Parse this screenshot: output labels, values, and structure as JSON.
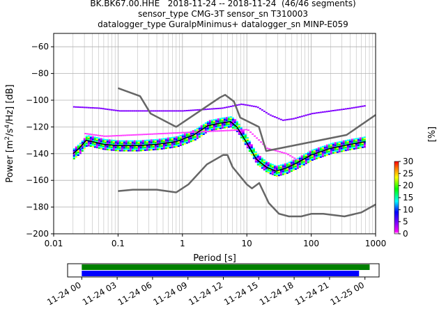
{
  "header": {
    "line1": "BK.BK67.00.HHE   2018-11-24 -- 2018-11-24  (46/46 segments)",
    "line2": "sensor_type CMG-3T sensor_sn T310003",
    "line3": "datalogger_type GuralpMinimus+ datalogger_sn MINP-E059"
  },
  "chart_data": [
    {
      "type": "heatmap",
      "xlabel": "Period [s]",
      "ylabel_prefix": "Power [m",
      "ylabel_sup1": "2",
      "ylabel_mid": "/s",
      "ylabel_sup2": "4",
      "ylabel_suffix": "/Hz] [dB]",
      "x_scale": "log",
      "xlim": [
        0.01,
        1000
      ],
      "ylim": [
        -200,
        -50
      ],
      "x_ticks": [
        "0.01",
        "0.1",
        "1",
        "10",
        "100",
        "1000"
      ],
      "x_tick_values": [
        0.01,
        0.1,
        1,
        10,
        100,
        1000
      ],
      "y_ticks": [
        "−200",
        "−180",
        "−160",
        "−140",
        "−120",
        "−100",
        "−80",
        "−60"
      ],
      "y_tick_values": [
        -200,
        -180,
        -160,
        -140,
        -120,
        -100,
        -80,
        -60
      ],
      "grid": true,
      "colorbar": {
        "label": "[%]",
        "ticks": [
          "0",
          "5",
          "10",
          "15",
          "20",
          "25",
          "30"
        ],
        "tick_values": [
          0,
          5,
          10,
          15,
          20,
          25,
          30
        ],
        "range": [
          0,
          30
        ]
      },
      "noise_models": {
        "color": "#666666",
        "high_noise_model": [
          [
            0.1,
            -91
          ],
          [
            0.22,
            -97
          ],
          [
            0.32,
            -110
          ],
          [
            0.8,
            -120
          ],
          [
            3.8,
            -98
          ],
          [
            4.6,
            -96
          ],
          [
            6.3,
            -101
          ],
          [
            7.9,
            -113
          ],
          [
            15.4,
            -120
          ],
          [
            20,
            -138
          ],
          [
            354.8,
            -126
          ],
          [
            1000,
            -111
          ]
        ],
        "low_noise_model": [
          [
            0.1,
            -168
          ],
          [
            0.17,
            -167
          ],
          [
            0.4,
            -167
          ],
          [
            0.8,
            -169
          ],
          [
            1.24,
            -163
          ],
          [
            2.4,
            -148
          ],
          [
            4.3,
            -141
          ],
          [
            5,
            -141
          ],
          [
            6,
            -150
          ],
          [
            10,
            -163
          ],
          [
            12,
            -166
          ],
          [
            15.6,
            -162
          ],
          [
            21.9,
            -177
          ],
          [
            31.6,
            -185
          ],
          [
            45,
            -187
          ],
          [
            70,
            -187
          ],
          [
            101,
            -185
          ],
          [
            154,
            -185
          ],
          [
            328,
            -187
          ],
          [
            600,
            -184
          ],
          [
            1000,
            -178
          ]
        ]
      },
      "mean_psd": {
        "color": "#000000",
        "points": [
          [
            0.02,
            -140
          ],
          [
            0.025,
            -136
          ],
          [
            0.032,
            -130
          ],
          [
            0.04,
            -131
          ],
          [
            0.06,
            -133
          ],
          [
            0.1,
            -134
          ],
          [
            0.2,
            -134
          ],
          [
            0.4,
            -133
          ],
          [
            0.8,
            -131
          ],
          [
            1.5,
            -126
          ],
          [
            2.5,
            -119
          ],
          [
            4,
            -117
          ],
          [
            5.6,
            -116
          ],
          [
            7,
            -120
          ],
          [
            10,
            -132
          ],
          [
            14,
            -144
          ],
          [
            20,
            -150
          ],
          [
            28,
            -153
          ],
          [
            40,
            -151
          ],
          [
            60,
            -147
          ],
          [
            100,
            -141
          ],
          [
            200,
            -136
          ],
          [
            400,
            -133
          ],
          [
            700,
            -131
          ]
        ]
      },
      "upper_outlier_band": {
        "color": "#8000ff",
        "points": [
          [
            0.02,
            -105
          ],
          [
            0.05,
            -106
          ],
          [
            0.1,
            -108
          ],
          [
            0.3,
            -108
          ],
          [
            1,
            -108
          ],
          [
            2,
            -107
          ],
          [
            4,
            -106
          ],
          [
            8,
            -103
          ],
          [
            14,
            -105
          ],
          [
            22,
            -111
          ],
          [
            35,
            -115
          ],
          [
            50,
            -114
          ],
          [
            100,
            -110
          ],
          [
            200,
            -108
          ],
          [
            400,
            -106
          ],
          [
            700,
            -104
          ]
        ]
      },
      "secondary_branch": {
        "color": "#ff40ff",
        "points": [
          [
            0.03,
            -125
          ],
          [
            0.06,
            -127
          ],
          [
            10,
            -122
          ],
          [
            15,
            -130
          ],
          [
            20,
            -136
          ],
          [
            40,
            -140
          ],
          [
            60,
            -145
          ]
        ]
      },
      "density_band_halfwidth_db": 4
    },
    {
      "type": "timeline",
      "x_ticks": [
        "11-24 00",
        "11-24 03",
        "11-24 06",
        "11-24 09",
        "11-24 12",
        "11-24 15",
        "11-24 18",
        "11-24 21",
        "11-25 00"
      ],
      "x_tick_values_hours": [
        0,
        3,
        6,
        9,
        12,
        15,
        18,
        21,
        24
      ],
      "xlim_hours": [
        -1.2,
        25.2
      ],
      "series": [
        {
          "color": "#008000",
          "start_hour": 0,
          "end_hour": 24.4
        },
        {
          "color": "#0000ff",
          "start_hour": 0,
          "end_hour": 23.5
        }
      ]
    }
  ]
}
